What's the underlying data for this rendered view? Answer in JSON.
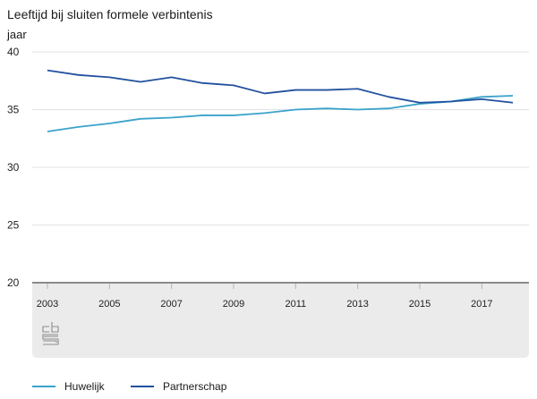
{
  "title": "Leeftijd bij sluiten formele verbintenis",
  "unit_label": "jaar",
  "colors": {
    "huwelijk": "#3aa3cb",
    "partnerschap": "#22519f",
    "grid": "#e2e2e2",
    "axis": "#8a8a8a",
    "footer_bg": "#ebebeb",
    "logo": "#8c8c8c"
  },
  "logo": "cbs",
  "chart_data": {
    "type": "line",
    "title": "Leeftijd bij sluiten formele verbintenis",
    "ylabel": "jaar",
    "xlabel": "",
    "x": [
      2003,
      2004,
      2005,
      2006,
      2007,
      2008,
      2009,
      2010,
      2011,
      2012,
      2013,
      2014,
      2015,
      2016,
      2017,
      2018
    ],
    "xlim": [
      2003,
      2018
    ],
    "ylim": [
      20,
      40
    ],
    "yticks": [
      "20",
      "25",
      "30",
      "35",
      "40"
    ],
    "xticks": [
      "2003",
      "2005",
      "2007",
      "2009",
      "2011",
      "2013",
      "2015",
      "2017"
    ],
    "grid": true,
    "legend_position": "bottom-left",
    "series": [
      {
        "name": "Huwelijk",
        "color_key": "huwelijk",
        "values": [
          33.1,
          33.5,
          33.8,
          34.2,
          34.3,
          34.5,
          34.5,
          34.7,
          35.0,
          35.1,
          35.0,
          35.1,
          35.5,
          35.7,
          36.1,
          36.2
        ]
      },
      {
        "name": "Partnerschap",
        "color_key": "partnerschap",
        "values": [
          38.4,
          38.0,
          37.8,
          37.4,
          37.8,
          37.3,
          37.1,
          36.4,
          36.7,
          36.7,
          36.8,
          36.1,
          35.6,
          35.7,
          35.9,
          35.6
        ]
      }
    ]
  }
}
